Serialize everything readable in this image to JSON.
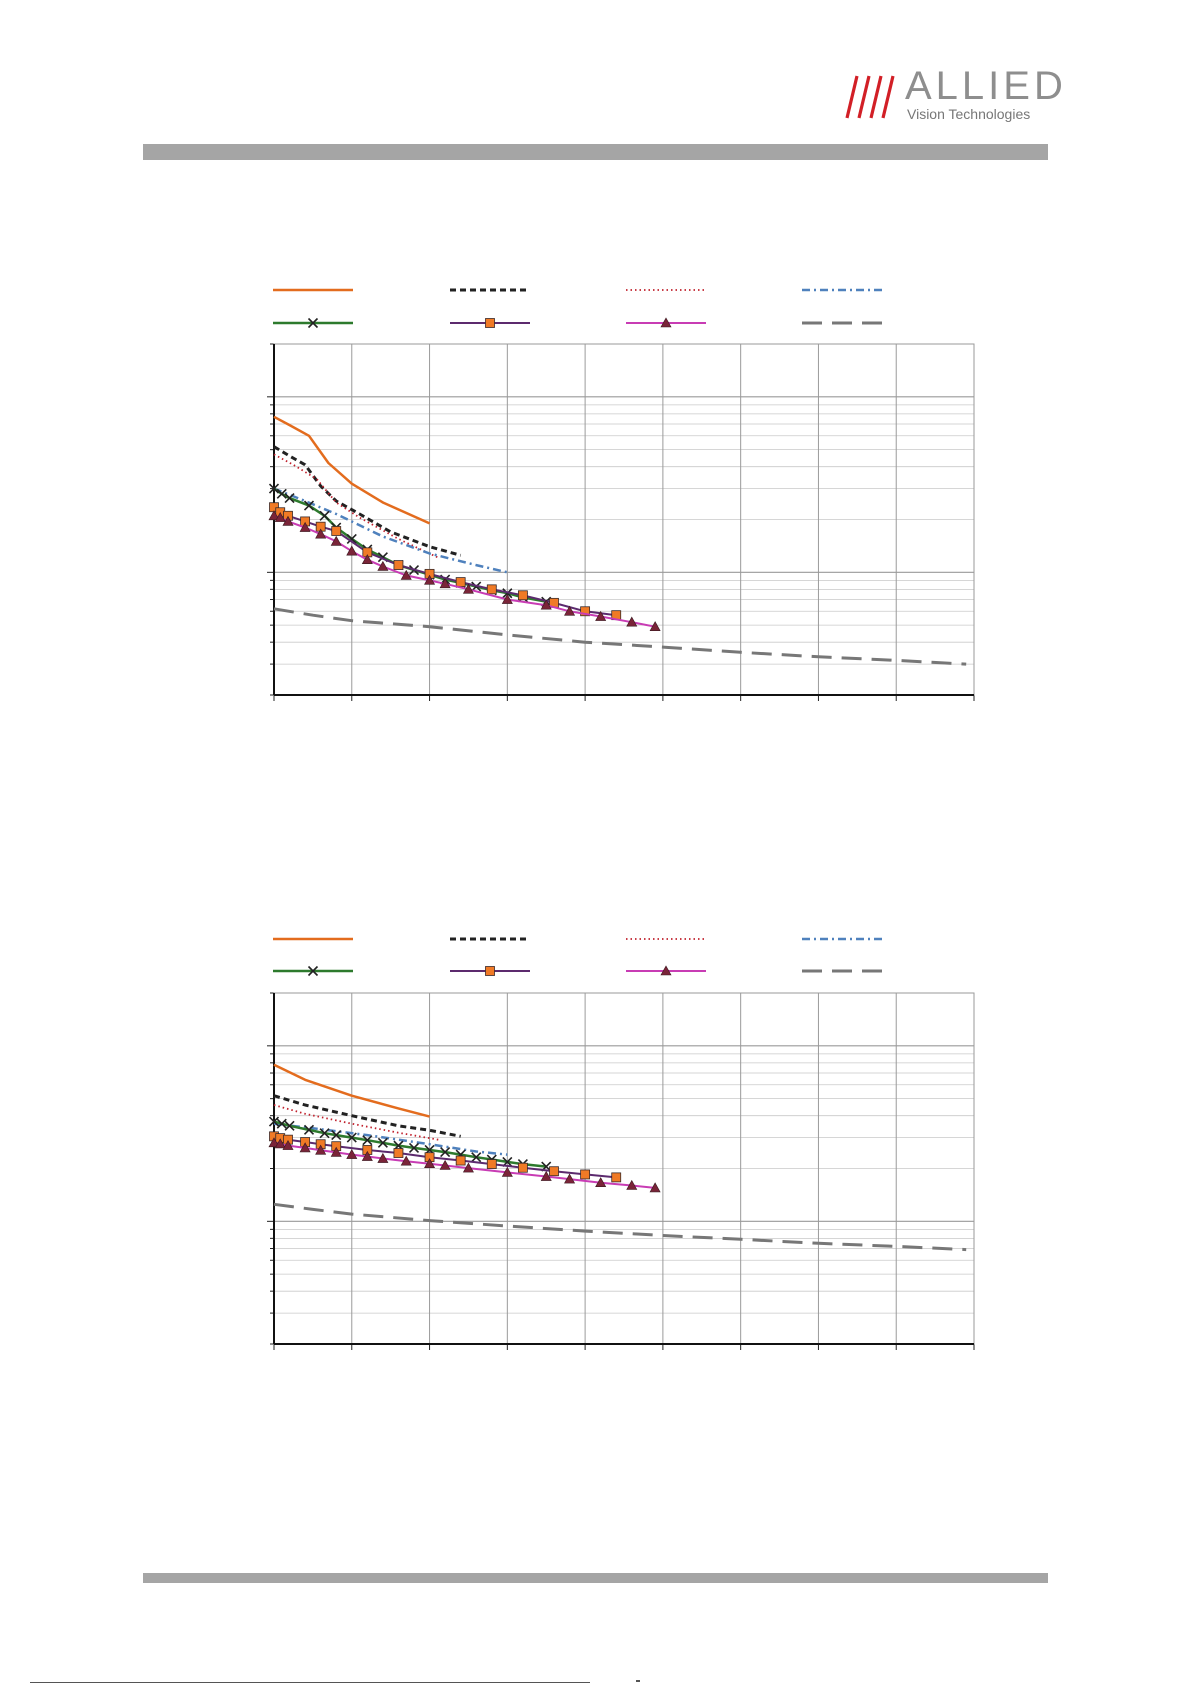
{
  "brand": {
    "name": "ALLIED",
    "tagline": "Vision Technologies",
    "colors": {
      "slashes": "#d21f26",
      "word": "#8e8e8e",
      "bars": "#a5a5a5"
    }
  },
  "chart_data": [
    {
      "type": "line",
      "title": "",
      "xlabel": "",
      "ylabel": "",
      "xlim": [
        0,
        900
      ],
      "x_grid_step": 100,
      "y_scale": "log",
      "ylim": [
        20,
        2000
      ],
      "grid": true,
      "legend": "top, 2 rows x 4 columns, no visible text",
      "series": [
        {
          "color": "#e36c1e",
          "dash": "solid",
          "width": 2.5,
          "marker": "none",
          "points": [
            [
              0,
              770
            ],
            [
              20,
              690
            ],
            [
              45,
              600
            ],
            [
              70,
              420
            ],
            [
              100,
              320
            ],
            [
              140,
              250
            ],
            [
              200,
              190
            ]
          ]
        },
        {
          "color": "#222222",
          "dash": "6,4",
          "width": 3,
          "marker": "none",
          "points": [
            [
              0,
              520
            ],
            [
              20,
              460
            ],
            [
              40,
              410
            ],
            [
              60,
              310
            ],
            [
              80,
              255
            ],
            [
              110,
              215
            ],
            [
              150,
              170
            ],
            [
              200,
              140
            ],
            [
              240,
              125
            ]
          ]
        },
        {
          "color": "#c0202c",
          "dash": "1.5,3",
          "width": 1.8,
          "marker": "none",
          "points": [
            [
              0,
              470
            ],
            [
              25,
              410
            ],
            [
              55,
              340
            ],
            [
              80,
              250
            ],
            [
              110,
              205
            ],
            [
              160,
              155
            ],
            [
              210,
              122
            ]
          ]
        },
        {
          "color": "#4f81bd",
          "dash": "8,4,2,4",
          "width": 2.5,
          "marker": "none",
          "points": [
            [
              0,
              300
            ],
            [
              40,
              255
            ],
            [
              80,
              215
            ],
            [
              140,
              160
            ],
            [
              200,
              128
            ],
            [
              260,
              110
            ],
            [
              300,
              100
            ]
          ]
        },
        {
          "color": "#2d7a2d",
          "dash": "solid",
          "width": 2.5,
          "marker": "x",
          "marker_color": "#222222",
          "points": [
            [
              0,
              300
            ],
            [
              10,
              280
            ],
            [
              20,
              265
            ],
            [
              45,
              240
            ],
            [
              65,
              210
            ],
            [
              80,
              180
            ],
            [
              100,
              155
            ],
            [
              120,
              135
            ],
            [
              140,
              122
            ],
            [
              160,
              110
            ],
            [
              180,
              103
            ],
            [
              200,
              97
            ],
            [
              220,
              91
            ],
            [
              240,
              87
            ],
            [
              260,
              83
            ],
            [
              280,
              79
            ],
            [
              300,
              76
            ],
            [
              320,
              72
            ],
            [
              350,
              68
            ]
          ]
        },
        {
          "color": "#5c2a6e",
          "dash": "solid",
          "width": 2,
          "marker": "square",
          "marker_color": "#f07a26",
          "points": [
            [
              0,
              235
            ],
            [
              8,
              220
            ],
            [
              18,
              210
            ],
            [
              40,
              195
            ],
            [
              60,
              182
            ],
            [
              80,
              172
            ],
            [
              120,
              130
            ],
            [
              160,
              110
            ],
            [
              200,
              98
            ],
            [
              240,
              88
            ],
            [
              280,
              80
            ],
            [
              320,
              74
            ],
            [
              360,
              67
            ],
            [
              400,
              60
            ],
            [
              440,
              57
            ]
          ]
        },
        {
          "color": "#c83cb4",
          "dash": "solid",
          "width": 2,
          "marker": "triangle",
          "marker_color": "#7a2438",
          "points": [
            [
              0,
              210
            ],
            [
              8,
              205
            ],
            [
              18,
              195
            ],
            [
              40,
              180
            ],
            [
              60,
              165
            ],
            [
              80,
              150
            ],
            [
              100,
              132
            ],
            [
              120,
              118
            ],
            [
              140,
              108
            ],
            [
              170,
              96
            ],
            [
              200,
              90
            ],
            [
              220,
              86
            ],
            [
              250,
              80
            ],
            [
              300,
              70
            ],
            [
              350,
              65
            ],
            [
              380,
              60
            ],
            [
              420,
              56
            ],
            [
              460,
              52
            ],
            [
              490,
              49
            ]
          ]
        },
        {
          "color": "#777777",
          "dash": "20,10",
          "width": 3,
          "marker": "none",
          "points": [
            [
              0,
              62
            ],
            [
              50,
              57
            ],
            [
              100,
              53
            ],
            [
              200,
              49
            ],
            [
              300,
              44
            ],
            [
              400,
              40
            ],
            [
              500,
              37.5
            ],
            [
              600,
              35
            ],
            [
              700,
              33
            ],
            [
              800,
              31.5
            ],
            [
              890,
              30
            ]
          ]
        }
      ]
    },
    {
      "type": "line",
      "title": "",
      "xlabel": "",
      "ylabel": "",
      "xlim": [
        0,
        900
      ],
      "x_grid_step": 100,
      "y_scale": "log",
      "ylim": [
        20,
        2000
      ],
      "grid": true,
      "legend": "top, 2 rows x 4 columns, no visible text",
      "series": [
        {
          "color": "#e36c1e",
          "dash": "solid",
          "width": 2.5,
          "marker": "none",
          "points": [
            [
              0,
              780
            ],
            [
              40,
              640
            ],
            [
              100,
              520
            ],
            [
              160,
              440
            ],
            [
              200,
              395
            ]
          ]
        },
        {
          "color": "#222222",
          "dash": "6,4",
          "width": 3,
          "marker": "none",
          "points": [
            [
              0,
              520
            ],
            [
              40,
              460
            ],
            [
              100,
              400
            ],
            [
              160,
              350
            ],
            [
              200,
              330
            ],
            [
              240,
              305
            ]
          ]
        },
        {
          "color": "#c0202c",
          "dash": "1.5,3",
          "width": 1.8,
          "marker": "none",
          "points": [
            [
              0,
              460
            ],
            [
              40,
              410
            ],
            [
              100,
              360
            ],
            [
              160,
              320
            ],
            [
              215,
              290
            ]
          ]
        },
        {
          "color": "#4f81bd",
          "dash": "8,4,2,4",
          "width": 2.5,
          "marker": "none",
          "points": [
            [
              0,
              360
            ],
            [
              60,
              335
            ],
            [
              120,
              310
            ],
            [
              200,
              275
            ],
            [
              260,
              250
            ],
            [
              300,
              240
            ]
          ]
        },
        {
          "color": "#2d7a2d",
          "dash": "solid",
          "width": 2.5,
          "marker": "x",
          "marker_color": "#222222",
          "points": [
            [
              0,
              370
            ],
            [
              10,
              360
            ],
            [
              20,
              350
            ],
            [
              45,
              332
            ],
            [
              65,
              318
            ],
            [
              80,
              310
            ],
            [
              100,
              300
            ],
            [
              120,
              290
            ],
            [
              140,
              280
            ],
            [
              160,
              270
            ],
            [
              180,
              262
            ],
            [
              200,
              255
            ],
            [
              220,
              248
            ],
            [
              240,
              240
            ],
            [
              260,
              232
            ],
            [
              280,
              225
            ],
            [
              300,
              218
            ],
            [
              320,
              212
            ],
            [
              350,
              205
            ]
          ]
        },
        {
          "color": "#5c2a6e",
          "dash": "solid",
          "width": 2,
          "marker": "square",
          "marker_color": "#f07a26",
          "points": [
            [
              0,
              305
            ],
            [
              8,
              298
            ],
            [
              18,
              292
            ],
            [
              40,
              283
            ],
            [
              60,
              275
            ],
            [
              80,
              268
            ],
            [
              120,
              255
            ],
            [
              160,
              245
            ],
            [
              200,
              232
            ],
            [
              240,
              222
            ],
            [
              280,
              212
            ],
            [
              320,
              202
            ],
            [
              360,
              193
            ],
            [
              400,
              185
            ],
            [
              440,
              178
            ]
          ]
        },
        {
          "color": "#c83cb4",
          "dash": "solid",
          "width": 2,
          "marker": "triangle",
          "marker_color": "#7a2438",
          "points": [
            [
              0,
              280
            ],
            [
              8,
              276
            ],
            [
              18,
              270
            ],
            [
              40,
              262
            ],
            [
              60,
              254
            ],
            [
              80,
              247
            ],
            [
              100,
              240
            ],
            [
              120,
              234
            ],
            [
              140,
              228
            ],
            [
              170,
              220
            ],
            [
              200,
              213
            ],
            [
              220,
              208
            ],
            [
              250,
              201
            ],
            [
              300,
              190
            ],
            [
              350,
              180
            ],
            [
              380,
              174
            ],
            [
              420,
              166
            ],
            [
              460,
              160
            ],
            [
              490,
              155
            ]
          ]
        },
        {
          "color": "#777777",
          "dash": "20,10",
          "width": 3,
          "marker": "none",
          "points": [
            [
              0,
              125
            ],
            [
              50,
              117
            ],
            [
              100,
              110
            ],
            [
              200,
              101
            ],
            [
              300,
              94
            ],
            [
              400,
              88
            ],
            [
              500,
              83
            ],
            [
              600,
              79
            ],
            [
              700,
              75
            ],
            [
              800,
              72
            ],
            [
              890,
              69
            ]
          ]
        }
      ]
    }
  ]
}
